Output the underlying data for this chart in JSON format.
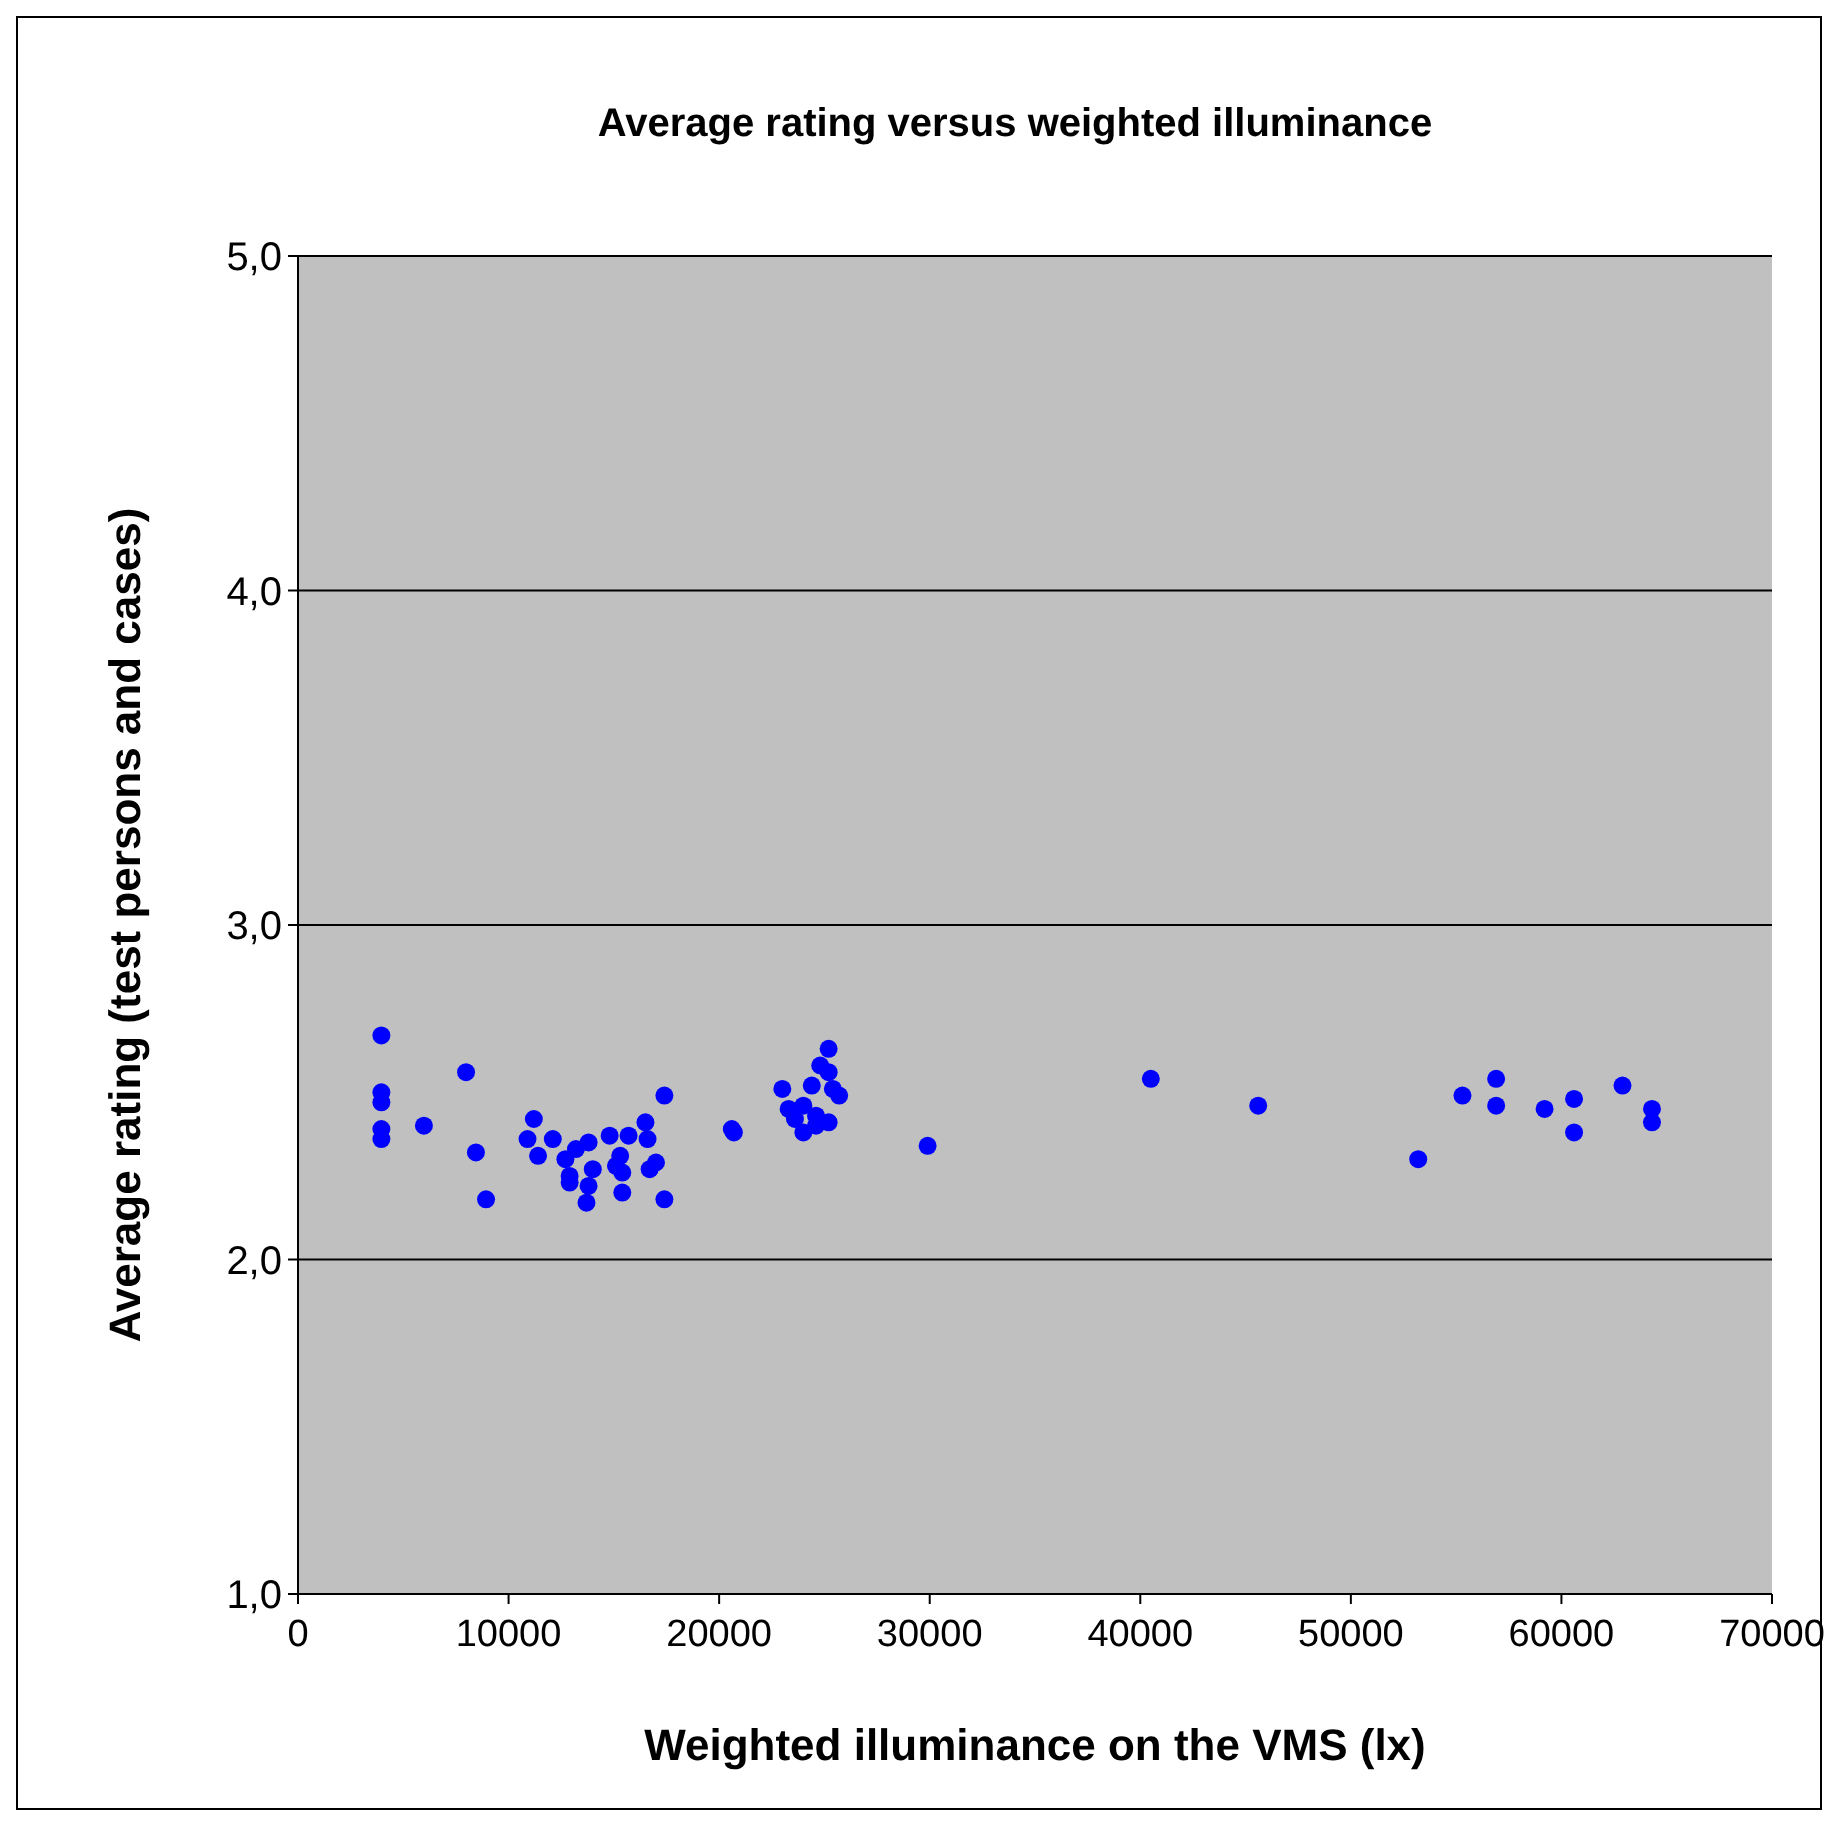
{
  "chart_data": {
    "type": "scatter",
    "title": "Average rating versus weighted illuminance",
    "xlabel": "Weighted illuminance on the VMS (lx)",
    "ylabel": "Average rating (test persons and cases)",
    "xlim": [
      0,
      70000
    ],
    "xticks": [
      0,
      10000,
      20000,
      30000,
      40000,
      50000,
      60000,
      70000
    ],
    "ylim": [
      1,
      5
    ],
    "yticks": [
      {
        "value": 1,
        "label": "1,0"
      },
      {
        "value": 2,
        "label": "2,0"
      },
      {
        "value": 3,
        "label": "3,0"
      },
      {
        "value": 4,
        "label": "4,0"
      },
      {
        "value": 5,
        "label": "5,0"
      }
    ],
    "grid": "y",
    "marker": "circle",
    "series": [
      {
        "color": "#0000ff",
        "x": [
          3960,
          3960,
          3960,
          3960,
          3960,
          7980,
          5980,
          8450,
          8930,
          11200,
          10900,
          11400,
          12100,
          12700,
          13200,
          13800,
          12900,
          12900,
          14000,
          13800,
          13700,
          14800,
          15700,
          15300,
          15100,
          15400,
          15400,
          16500,
          16600,
          16700,
          17000,
          17400,
          17400,
          20600,
          20700,
          23000,
          25200,
          24800,
          25200,
          24400,
          25400,
          25700,
          23300,
          24000,
          23600,
          24000,
          24600,
          25200,
          24600,
          29900,
          40500,
          45600,
          53200,
          55300,
          56900,
          56900,
          59200,
          60600,
          60600,
          62900,
          64300,
          64300
        ],
        "values": [
          2.67,
          2.5,
          2.47,
          2.39,
          2.36,
          2.56,
          2.4,
          2.32,
          2.18,
          2.42,
          2.36,
          2.31,
          2.36,
          2.3,
          2.33,
          2.35,
          2.25,
          2.23,
          2.27,
          2.22,
          2.17,
          2.37,
          2.37,
          2.31,
          2.28,
          2.26,
          2.2,
          2.41,
          2.36,
          2.27,
          2.29,
          2.49,
          2.18,
          2.39,
          2.38,
          2.51,
          2.63,
          2.58,
          2.56,
          2.52,
          2.51,
          2.49,
          2.45,
          2.46,
          2.42,
          2.38,
          2.43,
          2.41,
          2.4,
          2.34,
          2.54,
          2.46,
          2.3,
          2.49,
          2.54,
          2.46,
          2.45,
          2.48,
          2.38,
          2.52,
          2.45,
          2.41
        ]
      }
    ]
  }
}
